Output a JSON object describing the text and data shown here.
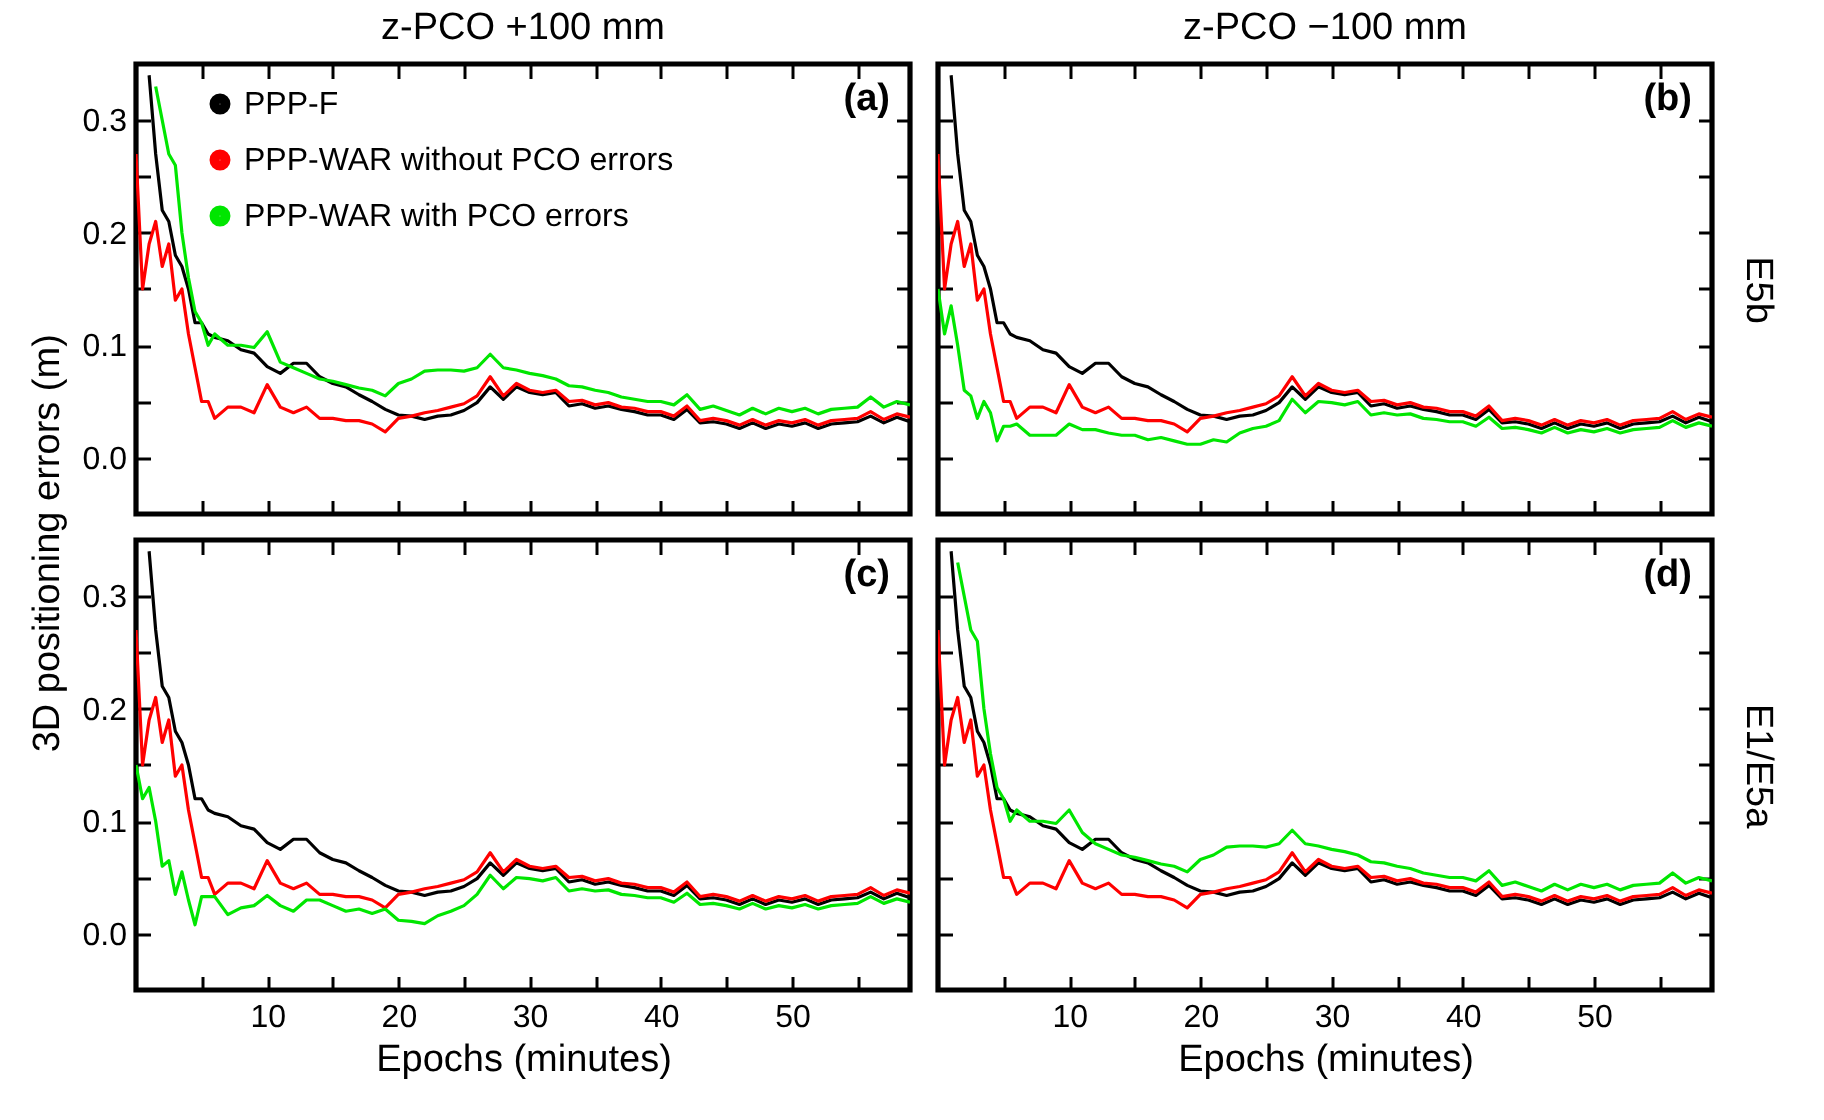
{
  "chart_data": [
    {
      "type": "line",
      "title": "z-PCO +100 mm",
      "ylabel": "3D positioning errors (m)",
      "annotations": [
        "(a)"
      ],
      "legend": "top left",
      "tick_labels": "y",
      "x": [
        0,
        0.5,
        1,
        1.5,
        2,
        2.5,
        3,
        3.5,
        4,
        4.5,
        5,
        5.5,
        6,
        7,
        8,
        9,
        10,
        11,
        12,
        13,
        14,
        15,
        16,
        17,
        18,
        19,
        20,
        21,
        22,
        23,
        24,
        25,
        26,
        27,
        28,
        29,
        30,
        31,
        32,
        33,
        34,
        35,
        36,
        37,
        38,
        39,
        40,
        41,
        42,
        43,
        44,
        45,
        46,
        47,
        48,
        49,
        50,
        51,
        52,
        53,
        54,
        55,
        56,
        57,
        58,
        59
      ],
      "xlim": [
        0,
        59
      ],
      "xticks": [
        5,
        10,
        15,
        20,
        25,
        30,
        35,
        40,
        45,
        50,
        55
      ],
      "ylim": [
        -0.05,
        0.35
      ],
      "yticks": [
        {
          "value": 0,
          "label": "0.0"
        },
        {
          "value": 0.05,
          "label": null
        },
        0.1,
        {
          "value": 0.15,
          "label": null
        },
        0.2,
        {
          "value": 0.25,
          "label": null
        },
        0.3
      ],
      "series": [
        {
          "name": "PPP-F",
          "color": "#000000",
          "values": [
            null,
            null,
            0.34,
            0.27,
            0.22,
            0.21,
            0.18,
            0.17,
            0.15,
            0.12,
            0.12,
            0.11,
            0.107,
            0.104,
            0.096,
            0.093,
            0.081,
            0.075,
            0.084,
            0.084,
            0.072,
            0.066,
            0.063,
            0.056,
            0.05,
            0.043,
            0.038,
            0.037,
            0.034,
            0.037,
            0.038,
            0.042,
            0.049,
            0.063,
            0.052,
            0.063,
            0.058,
            0.056,
            0.058,
            0.046,
            0.048,
            0.044,
            0.046,
            0.043,
            0.041,
            0.038,
            0.038,
            0.034,
            0.043,
            0.031,
            0.032,
            0.03,
            0.026,
            0.031,
            0.026,
            0.03,
            0.028,
            0.031,
            0.026,
            0.03,
            0.031,
            0.032,
            0.037,
            0.031,
            0.036,
            0.032
          ]
        },
        {
          "name": "PPP-WAR without PCO errors",
          "color": "#ff0000",
          "values": [
            0.27,
            0.15,
            0.19,
            0.21,
            0.17,
            0.19,
            0.14,
            0.15,
            0.11,
            0.08,
            0.05,
            0.05,
            0.035,
            0.045,
            0.045,
            0.04,
            0.065,
            0.045,
            0.04,
            0.045,
            0.035,
            0.035,
            0.033,
            0.033,
            0.03,
            0.023,
            0.035,
            0.037,
            0.04,
            0.042,
            0.045,
            0.048,
            0.055,
            0.072,
            0.055,
            0.066,
            0.06,
            0.058,
            0.06,
            0.05,
            0.051,
            0.047,
            0.049,
            0.045,
            0.044,
            0.041,
            0.041,
            0.037,
            0.046,
            0.033,
            0.035,
            0.033,
            0.029,
            0.034,
            0.029,
            0.033,
            0.031,
            0.034,
            0.029,
            0.033,
            0.034,
            0.035,
            0.041,
            0.034,
            0.039,
            0.036
          ]
        },
        {
          "name": "PPP-WAR with PCO errors",
          "color": "#00e600",
          "values": [
            null,
            null,
            null,
            0.33,
            0.3,
            0.27,
            0.26,
            0.2,
            0.16,
            0.13,
            0.12,
            0.1,
            0.11,
            0.1,
            0.1,
            0.098,
            0.112,
            0.085,
            0.08,
            0.075,
            0.07,
            0.068,
            0.065,
            0.062,
            0.06,
            0.055,
            0.066,
            0.07,
            0.077,
            0.078,
            0.078,
            0.077,
            0.08,
            0.092,
            0.08,
            0.078,
            0.075,
            0.073,
            0.07,
            0.064,
            0.063,
            0.06,
            0.058,
            0.054,
            0.052,
            0.05,
            0.05,
            0.047,
            0.056,
            0.043,
            0.046,
            0.042,
            0.038,
            0.044,
            0.039,
            0.044,
            0.041,
            0.044,
            0.039,
            0.043,
            0.044,
            0.045,
            0.054,
            0.045,
            0.05,
            0.047
          ]
        }
      ]
    },
    {
      "type": "line",
      "title": "z-PCO −100 mm",
      "y2label": "E5b",
      "annotations": [
        "(b)"
      ],
      "tick_labels": false,
      "x": [
        0,
        0.5,
        1,
        1.5,
        2,
        2.5,
        3,
        3.5,
        4,
        4.5,
        5,
        5.5,
        6,
        7,
        8,
        9,
        10,
        11,
        12,
        13,
        14,
        15,
        16,
        17,
        18,
        19,
        20,
        21,
        22,
        23,
        24,
        25,
        26,
        27,
        28,
        29,
        30,
        31,
        32,
        33,
        34,
        35,
        36,
        37,
        38,
        39,
        40,
        41,
        42,
        43,
        44,
        45,
        46,
        47,
        48,
        49,
        50,
        51,
        52,
        53,
        54,
        55,
        56,
        57,
        58,
        59
      ],
      "xlim": [
        0,
        59
      ],
      "xticks": [
        5,
        10,
        15,
        20,
        25,
        30,
        35,
        40,
        45,
        50,
        55
      ],
      "ylim": [
        -0.05,
        0.35
      ],
      "yticks": [
        0,
        0.05,
        0.1,
        0.15,
        0.2,
        0.25,
        0.3
      ],
      "series": [
        {
          "color": "#000000",
          "values": [
            null,
            null,
            0.34,
            0.27,
            0.22,
            0.21,
            0.18,
            0.17,
            0.15,
            0.12,
            0.12,
            0.11,
            0.107,
            0.104,
            0.096,
            0.093,
            0.081,
            0.075,
            0.084,
            0.084,
            0.072,
            0.066,
            0.063,
            0.056,
            0.05,
            0.043,
            0.038,
            0.037,
            0.034,
            0.037,
            0.038,
            0.042,
            0.049,
            0.063,
            0.052,
            0.063,
            0.058,
            0.056,
            0.058,
            0.046,
            0.048,
            0.044,
            0.046,
            0.043,
            0.041,
            0.038,
            0.038,
            0.034,
            0.043,
            0.031,
            0.032,
            0.03,
            0.026,
            0.031,
            0.026,
            0.03,
            0.028,
            0.031,
            0.026,
            0.03,
            0.031,
            0.032,
            0.037,
            0.031,
            0.036,
            0.032
          ]
        },
        {
          "color": "#ff0000",
          "values": [
            0.27,
            0.15,
            0.19,
            0.21,
            0.17,
            0.19,
            0.14,
            0.15,
            0.11,
            0.08,
            0.05,
            0.05,
            0.035,
            0.045,
            0.045,
            0.04,
            0.065,
            0.045,
            0.04,
            0.045,
            0.035,
            0.035,
            0.033,
            0.033,
            0.03,
            0.023,
            0.035,
            0.037,
            0.04,
            0.042,
            0.045,
            0.048,
            0.055,
            0.072,
            0.055,
            0.066,
            0.06,
            0.058,
            0.06,
            0.05,
            0.051,
            0.047,
            0.049,
            0.045,
            0.044,
            0.041,
            0.041,
            0.037,
            0.046,
            0.033,
            0.035,
            0.033,
            0.029,
            0.034,
            0.029,
            0.033,
            0.031,
            0.034,
            0.029,
            0.033,
            0.034,
            0.035,
            0.041,
            0.034,
            0.039,
            0.036
          ]
        },
        {
          "color": "#00e600",
          "values": [
            0.15,
            0.11,
            0.135,
            0.1,
            0.06,
            0.055,
            0.035,
            0.05,
            0.04,
            0.015,
            0.028,
            0.028,
            0.03,
            0.02,
            0.02,
            0.02,
            0.03,
            0.025,
            0.025,
            0.022,
            0.02,
            0.02,
            0.016,
            0.018,
            0.015,
            0.012,
            0.012,
            0.016,
            0.014,
            0.022,
            0.026,
            0.028,
            0.033,
            0.052,
            0.04,
            0.05,
            0.049,
            0.047,
            0.05,
            0.038,
            0.04,
            0.038,
            0.039,
            0.035,
            0.034,
            0.032,
            0.032,
            0.028,
            0.036,
            0.026,
            0.027,
            0.025,
            0.022,
            0.027,
            0.022,
            0.025,
            0.023,
            0.026,
            0.022,
            0.025,
            0.026,
            0.027,
            0.033,
            0.027,
            0.031,
            0.028
          ]
        }
      ]
    },
    {
      "type": "line",
      "xlabel": "Epochs (minutes)",
      "annotations": [
        "(c)"
      ],
      "x": [
        0,
        0.5,
        1,
        1.5,
        2,
        2.5,
        3,
        3.5,
        4,
        4.5,
        5,
        5.5,
        6,
        7,
        8,
        9,
        10,
        11,
        12,
        13,
        14,
        15,
        16,
        17,
        18,
        19,
        20,
        21,
        22,
        23,
        24,
        25,
        26,
        27,
        28,
        29,
        30,
        31,
        32,
        33,
        34,
        35,
        36,
        37,
        38,
        39,
        40,
        41,
        42,
        43,
        44,
        45,
        46,
        47,
        48,
        49,
        50,
        51,
        52,
        53,
        54,
        55,
        56,
        57,
        58,
        59
      ],
      "xlim": [
        0,
        59
      ],
      "xticks": [
        {
          "value": 5,
          "label": null
        },
        10,
        {
          "value": 15,
          "label": null
        },
        20,
        {
          "value": 25,
          "label": null
        },
        30,
        {
          "value": 35,
          "label": null
        },
        40,
        {
          "value": 45,
          "label": null
        },
        50,
        {
          "value": 55,
          "label": null
        }
      ],
      "ylim": [
        -0.05,
        0.35
      ],
      "yticks": [
        {
          "value": 0,
          "label": "0.0"
        },
        {
          "value": 0.05,
          "label": null
        },
        0.1,
        {
          "value": 0.15,
          "label": null
        },
        0.2,
        {
          "value": 0.25,
          "label": null
        },
        0.3
      ],
      "series": [
        {
          "color": "#000000",
          "values": [
            null,
            null,
            0.34,
            0.27,
            0.22,
            0.21,
            0.18,
            0.17,
            0.15,
            0.12,
            0.12,
            0.11,
            0.107,
            0.104,
            0.096,
            0.093,
            0.081,
            0.075,
            0.084,
            0.084,
            0.072,
            0.066,
            0.063,
            0.056,
            0.05,
            0.043,
            0.038,
            0.037,
            0.034,
            0.037,
            0.038,
            0.042,
            0.049,
            0.063,
            0.052,
            0.063,
            0.058,
            0.056,
            0.058,
            0.046,
            0.048,
            0.044,
            0.046,
            0.043,
            0.041,
            0.038,
            0.038,
            0.034,
            0.043,
            0.031,
            0.032,
            0.03,
            0.026,
            0.031,
            0.026,
            0.03,
            0.028,
            0.031,
            0.026,
            0.03,
            0.031,
            0.032,
            0.037,
            0.031,
            0.036,
            0.032
          ]
        },
        {
          "color": "#ff0000",
          "values": [
            0.27,
            0.15,
            0.19,
            0.21,
            0.17,
            0.19,
            0.14,
            0.15,
            0.11,
            0.08,
            0.05,
            0.05,
            0.035,
            0.045,
            0.045,
            0.04,
            0.065,
            0.045,
            0.04,
            0.045,
            0.035,
            0.035,
            0.033,
            0.033,
            0.03,
            0.023,
            0.035,
            0.037,
            0.04,
            0.042,
            0.045,
            0.048,
            0.055,
            0.072,
            0.055,
            0.066,
            0.06,
            0.058,
            0.06,
            0.05,
            0.051,
            0.047,
            0.049,
            0.045,
            0.044,
            0.041,
            0.041,
            0.037,
            0.046,
            0.033,
            0.035,
            0.033,
            0.029,
            0.034,
            0.029,
            0.033,
            0.031,
            0.034,
            0.029,
            0.033,
            0.034,
            0.035,
            0.041,
            0.034,
            0.039,
            0.036
          ]
        },
        {
          "color": "#00e600",
          "values": [
            0.15,
            0.12,
            0.13,
            0.1,
            0.06,
            0.065,
            0.035,
            0.055,
            0.03,
            0.008,
            0.033,
            0.033,
            0.033,
            0.017,
            0.023,
            0.025,
            0.034,
            0.025,
            0.02,
            0.03,
            0.03,
            0.025,
            0.02,
            0.022,
            0.018,
            0.022,
            0.012,
            0.011,
            0.009,
            0.016,
            0.02,
            0.025,
            0.035,
            0.052,
            0.04,
            0.05,
            0.049,
            0.047,
            0.05,
            0.038,
            0.04,
            0.038,
            0.039,
            0.035,
            0.034,
            0.032,
            0.032,
            0.028,
            0.036,
            0.026,
            0.027,
            0.025,
            0.022,
            0.027,
            0.022,
            0.025,
            0.023,
            0.026,
            0.022,
            0.025,
            0.026,
            0.027,
            0.033,
            0.027,
            0.031,
            0.028
          ]
        }
      ]
    },
    {
      "type": "line",
      "xlabel": "Epochs (minutes)",
      "y2label": "E1/E5a",
      "annotations": [
        "(d)"
      ],
      "tick_labels": "x",
      "x": [
        0,
        0.5,
        1,
        1.5,
        2,
        2.5,
        3,
        3.5,
        4,
        4.5,
        5,
        5.5,
        6,
        7,
        8,
        9,
        10,
        11,
        12,
        13,
        14,
        15,
        16,
        17,
        18,
        19,
        20,
        21,
        22,
        23,
        24,
        25,
        26,
        27,
        28,
        29,
        30,
        31,
        32,
        33,
        34,
        35,
        36,
        37,
        38,
        39,
        40,
        41,
        42,
        43,
        44,
        45,
        46,
        47,
        48,
        49,
        50,
        51,
        52,
        53,
        54,
        55,
        56,
        57,
        58,
        59
      ],
      "xlim": [
        0,
        59
      ],
      "xticks": [
        {
          "value": 5,
          "label": null
        },
        10,
        {
          "value": 15,
          "label": null
        },
        20,
        {
          "value": 25,
          "label": null
        },
        30,
        {
          "value": 35,
          "label": null
        },
        40,
        {
          "value": 45,
          "label": null
        },
        50,
        {
          "value": 55,
          "label": null
        }
      ],
      "ylim": [
        -0.05,
        0.35
      ],
      "yticks": [
        0,
        0.05,
        0.1,
        0.15,
        0.2,
        0.25,
        0.3
      ],
      "series": [
        {
          "color": "#000000",
          "values": [
            null,
            null,
            0.34,
            0.27,
            0.22,
            0.21,
            0.18,
            0.17,
            0.15,
            0.12,
            0.12,
            0.11,
            0.107,
            0.104,
            0.096,
            0.093,
            0.081,
            0.075,
            0.084,
            0.084,
            0.072,
            0.066,
            0.063,
            0.056,
            0.05,
            0.043,
            0.038,
            0.037,
            0.034,
            0.037,
            0.038,
            0.042,
            0.049,
            0.063,
            0.052,
            0.063,
            0.058,
            0.056,
            0.058,
            0.046,
            0.048,
            0.044,
            0.046,
            0.043,
            0.041,
            0.038,
            0.038,
            0.034,
            0.043,
            0.031,
            0.032,
            0.03,
            0.026,
            0.031,
            0.026,
            0.03,
            0.028,
            0.031,
            0.026,
            0.03,
            0.031,
            0.032,
            0.037,
            0.031,
            0.036,
            0.032
          ]
        },
        {
          "color": "#ff0000",
          "values": [
            0.27,
            0.15,
            0.19,
            0.21,
            0.17,
            0.19,
            0.14,
            0.15,
            0.11,
            0.08,
            0.05,
            0.05,
            0.035,
            0.045,
            0.045,
            0.04,
            0.065,
            0.045,
            0.04,
            0.045,
            0.035,
            0.035,
            0.033,
            0.033,
            0.03,
            0.023,
            0.035,
            0.037,
            0.04,
            0.042,
            0.045,
            0.048,
            0.055,
            0.072,
            0.055,
            0.066,
            0.06,
            0.058,
            0.06,
            0.05,
            0.051,
            0.047,
            0.049,
            0.045,
            0.044,
            0.041,
            0.041,
            0.037,
            0.046,
            0.033,
            0.035,
            0.033,
            0.029,
            0.034,
            0.029,
            0.033,
            0.031,
            0.034,
            0.029,
            0.033,
            0.034,
            0.035,
            0.041,
            0.034,
            0.039,
            0.036
          ]
        },
        {
          "color": "#00e600",
          "values": [
            null,
            null,
            null,
            0.33,
            0.3,
            0.27,
            0.26,
            0.2,
            0.16,
            0.13,
            0.12,
            0.1,
            0.11,
            0.1,
            0.1,
            0.098,
            0.11,
            0.09,
            0.08,
            0.075,
            0.07,
            0.068,
            0.065,
            0.062,
            0.06,
            0.055,
            0.066,
            0.07,
            0.077,
            0.078,
            0.078,
            0.077,
            0.08,
            0.092,
            0.08,
            0.078,
            0.075,
            0.073,
            0.07,
            0.064,
            0.063,
            0.06,
            0.058,
            0.054,
            0.052,
            0.05,
            0.05,
            0.047,
            0.056,
            0.043,
            0.046,
            0.042,
            0.038,
            0.044,
            0.039,
            0.044,
            0.041,
            0.044,
            0.039,
            0.043,
            0.044,
            0.045,
            0.054,
            0.045,
            0.05,
            0.047
          ]
        }
      ]
    }
  ]
}
